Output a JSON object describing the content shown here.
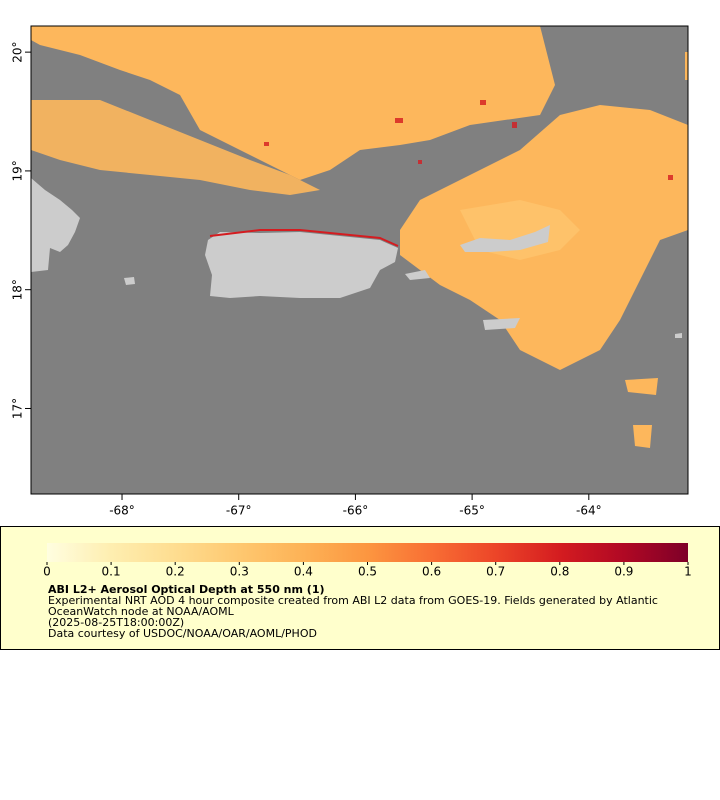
{
  "map": {
    "xlim": [
      -68.78,
      -63.15
    ],
    "ylim": [
      16.28,
      20.22
    ],
    "xticks": [
      {
        "value": -68,
        "label": "-68°"
      },
      {
        "value": -67,
        "label": "-67°"
      },
      {
        "value": -66,
        "label": "-66°"
      },
      {
        "value": -65,
        "label": "-65°"
      },
      {
        "value": -64,
        "label": "-64°"
      }
    ],
    "yticks": [
      {
        "value": 17,
        "label": "17°"
      },
      {
        "value": 18,
        "label": "18°"
      },
      {
        "value": 19,
        "label": "19°"
      },
      {
        "value": 20,
        "label": "20°"
      }
    ]
  },
  "legend": {
    "title": "ABI L2+ Aerosol Optical Depth at 550 nm (1)",
    "lines": [
      "Experimental NRT AOD 4 hour composite created from ABI L2 data from GOES-19. Fields generated by Atlantic",
      "OceanWatch node at NOAA/AOML",
      "(2025-08-25T18:00:00Z)",
      "Data courtesy of USDOC/NOAA/OAR/AOML/PHOD"
    ],
    "colorbar": {
      "range": [
        0,
        1
      ],
      "ticks": [
        0,
        0.1,
        0.2,
        0.3,
        0.4,
        0.5,
        0.6,
        0.7,
        0.8,
        0.9,
        1
      ],
      "colors": [
        "#fffee0",
        "#feeeb0",
        "#fedd90",
        "#fec870",
        "#fdb256",
        "#fc9640",
        "#f86e34",
        "#ec4528",
        "#d41c20",
        "#b00824",
        "#7e0028"
      ]
    }
  }
}
